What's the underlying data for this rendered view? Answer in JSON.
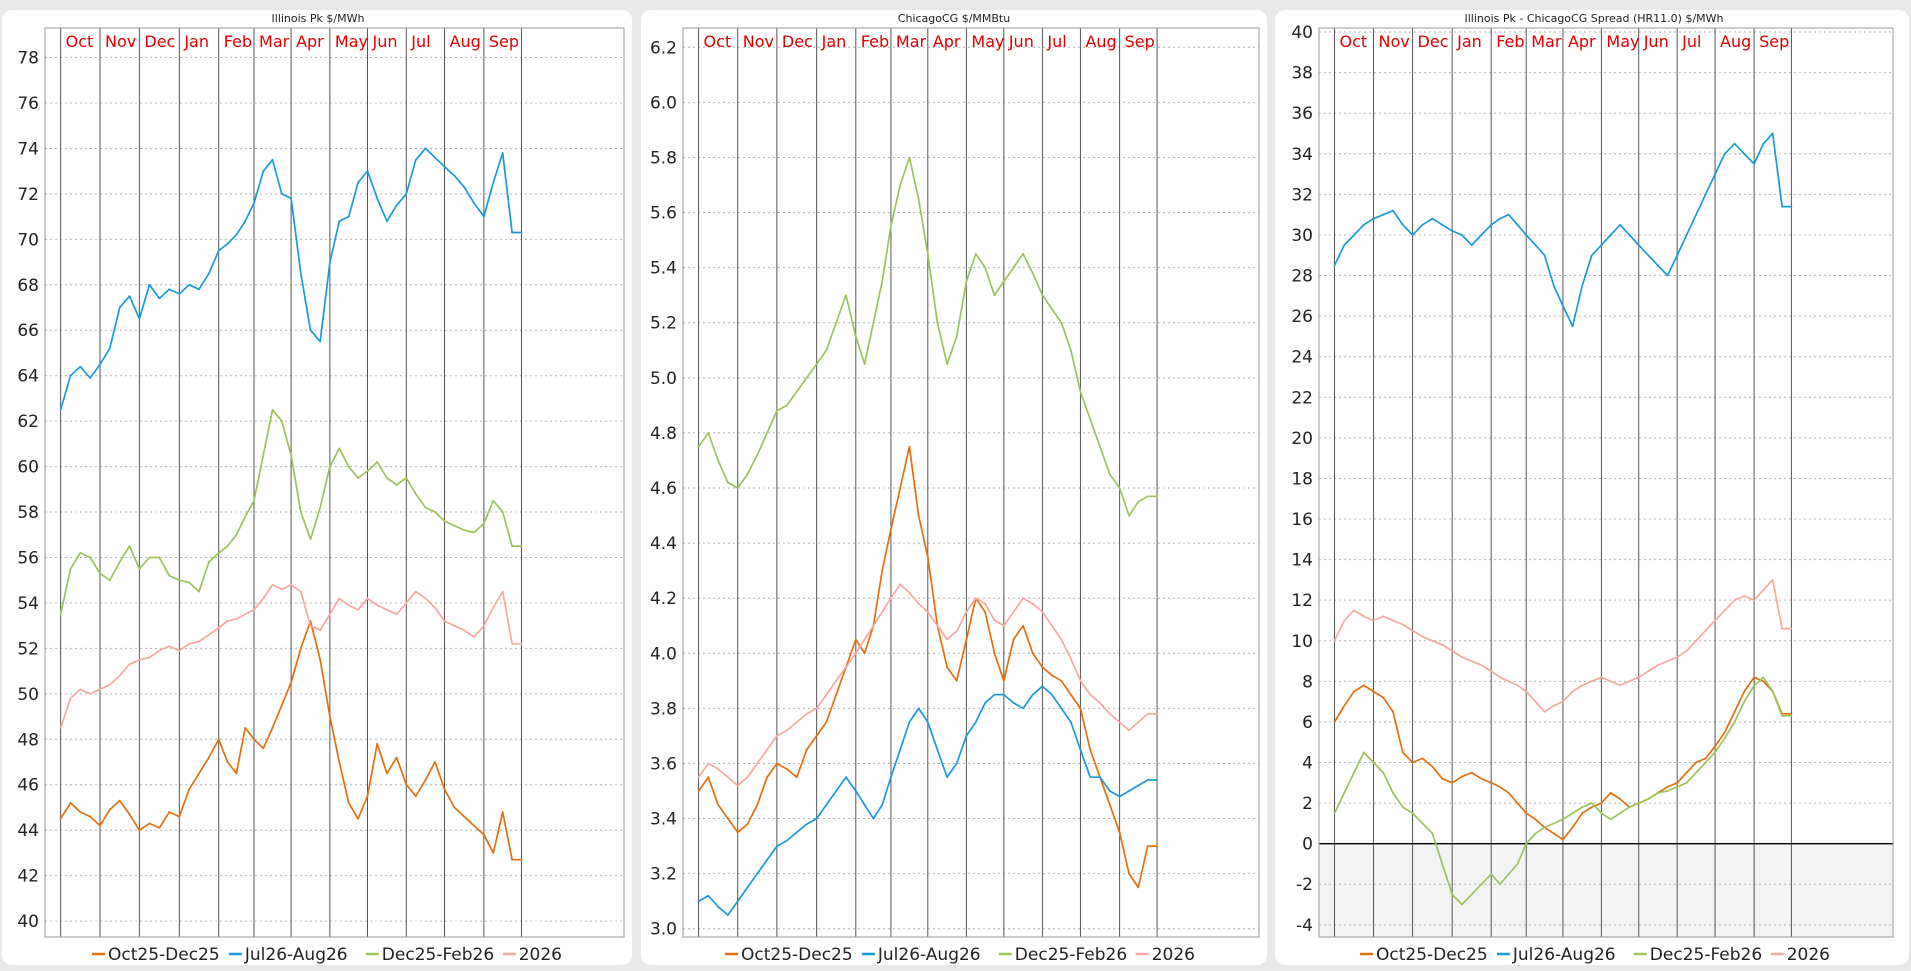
{
  "legend_series": [
    "Oct25-Dec25",
    "Jul26-Aug26",
    "Dec25-Feb26",
    "2026"
  ],
  "colors": {
    "Oct25-Dec25": "#e07010",
    "Jul26-Aug26": "#1a9ad6",
    "Dec25-Feb26": "#9cc25a",
    "2026": "#f4a8a0"
  },
  "chart_data": [
    {
      "type": "line",
      "title": "Illinois Pk $/MWh",
      "month_labels": [
        "Oct",
        "Nov",
        "Dec",
        "Jan",
        "Feb",
        "Mar",
        "Apr",
        "May",
        "Jun",
        "Jul",
        "Aug",
        "Sep"
      ],
      "yticks": [
        "40",
        "42",
        "44",
        "46",
        "48",
        "50",
        "52",
        "54",
        "56",
        "58",
        "60",
        "62",
        "64",
        "66",
        "68",
        "70",
        "72",
        "74",
        "76",
        "78"
      ],
      "ylim": [
        39.3,
        79.3
      ],
      "x": [
        0,
        0.25,
        0.5,
        0.75,
        1,
        1.25,
        1.5,
        1.75,
        2,
        2.25,
        2.5,
        2.75,
        3,
        3.25,
        3.5,
        3.75,
        4,
        4.25,
        4.5,
        4.75,
        5,
        5.25,
        5.5,
        5.75,
        6,
        6.25,
        6.5,
        6.75,
        7,
        7.25,
        7.5,
        7.75,
        8,
        8.25,
        8.5,
        8.75,
        9,
        9.25,
        9.5,
        9.75,
        10,
        10.25,
        10.5,
        10.75,
        11,
        11.25,
        11.5,
        11.75,
        12
      ],
      "series": [
        {
          "name": "Oct25-Dec25",
          "values": [
            44.5,
            45.2,
            44.8,
            44.6,
            44.2,
            44.9,
            45.3,
            44.7,
            44.0,
            44.3,
            44.1,
            44.8,
            44.6,
            45.8,
            46.5,
            47.2,
            48.0,
            47.0,
            46.5,
            48.5,
            48.0,
            47.6,
            48.5,
            49.5,
            50.5,
            52.0,
            53.2,
            51.5,
            49.0,
            47.0,
            45.2,
            44.5,
            45.5,
            47.8,
            46.5,
            47.2,
            46.0,
            45.5,
            46.2,
            47.0,
            45.8,
            45.0,
            44.6,
            44.2,
            43.8,
            43.0,
            44.8,
            42.7,
            42.7
          ]
        },
        {
          "name": "Jul26-Aug26",
          "values": [
            62.5,
            64.0,
            64.4,
            63.9,
            64.5,
            65.2,
            67.0,
            67.5,
            66.5,
            68.0,
            67.4,
            67.8,
            67.6,
            68.0,
            67.8,
            68.5,
            69.5,
            69.8,
            70.2,
            70.8,
            71.6,
            73.0,
            73.5,
            72.0,
            71.8,
            68.5,
            66.0,
            65.5,
            69.0,
            70.8,
            71.0,
            72.5,
            73.0,
            71.8,
            70.8,
            71.5,
            72.0,
            73.5,
            74.0,
            73.6,
            73.2,
            72.8,
            72.3,
            71.6,
            71.0,
            72.5,
            73.8,
            70.3,
            70.3
          ]
        },
        {
          "name": "Dec25-Feb26",
          "values": [
            53.5,
            55.5,
            56.2,
            56.0,
            55.3,
            55.0,
            55.8,
            56.5,
            55.5,
            56.0,
            56.0,
            55.2,
            55.0,
            54.9,
            54.5,
            55.8,
            56.2,
            56.5,
            57.0,
            57.8,
            58.5,
            60.5,
            62.5,
            62.0,
            60.5,
            58.0,
            56.8,
            58.2,
            60.0,
            60.8,
            60.0,
            59.5,
            59.8,
            60.2,
            59.5,
            59.2,
            59.5,
            58.8,
            58.2,
            58.0,
            57.6,
            57.4,
            57.2,
            57.1,
            57.5,
            58.5,
            58.0,
            56.5,
            56.5
          ]
        },
        {
          "name": "2026",
          "values": [
            48.5,
            49.8,
            50.2,
            50.0,
            50.2,
            50.4,
            50.8,
            51.3,
            51.5,
            51.6,
            51.9,
            52.1,
            51.9,
            52.2,
            52.3,
            52.6,
            52.9,
            53.2,
            53.3,
            53.5,
            53.7,
            54.2,
            54.8,
            54.6,
            54.8,
            54.5,
            53.0,
            52.8,
            53.5,
            54.2,
            53.9,
            53.7,
            54.2,
            53.9,
            53.7,
            53.5,
            54.0,
            54.5,
            54.2,
            53.8,
            53.2,
            53.0,
            52.8,
            52.5,
            53.0,
            53.8,
            54.5,
            52.2,
            52.2
          ]
        }
      ]
    },
    {
      "type": "line",
      "title": "ChicagoCG $/MMBtu",
      "month_labels": [
        "Oct",
        "Nov",
        "Dec",
        "Jan",
        "Feb",
        "Mar",
        "Apr",
        "May",
        "Jun",
        "Jul",
        "Aug",
        "Sep"
      ],
      "yticks": [
        "3.0",
        "3.2",
        "3.4",
        "3.6",
        "3.8",
        "4.0",
        "4.2",
        "4.4",
        "4.6",
        "4.8",
        "5.0",
        "5.2",
        "5.4",
        "5.6",
        "5.8",
        "6.0",
        "6.2"
      ],
      "ylim": [
        2.97,
        6.27
      ],
      "x": [
        0,
        0.25,
        0.5,
        0.75,
        1,
        1.25,
        1.5,
        1.75,
        2,
        2.25,
        2.5,
        2.75,
        3,
        3.25,
        3.5,
        3.75,
        4,
        4.25,
        4.5,
        4.75,
        5,
        5.25,
        5.5,
        5.75,
        6,
        6.25,
        6.5,
        6.75,
        7,
        7.25,
        7.5,
        7.75,
        8,
        8.25,
        8.5,
        8.75,
        9,
        9.25,
        9.5,
        9.75,
        10,
        10.25,
        10.5,
        10.75,
        11,
        11.25,
        11.5,
        11.75,
        12
      ],
      "series": [
        {
          "name": "Oct25-Dec25",
          "values": [
            3.5,
            3.55,
            3.45,
            3.4,
            3.35,
            3.38,
            3.45,
            3.55,
            3.6,
            3.58,
            3.55,
            3.65,
            3.7,
            3.75,
            3.85,
            3.95,
            4.05,
            4.0,
            4.1,
            4.3,
            4.45,
            4.6,
            4.75,
            4.5,
            4.35,
            4.1,
            3.95,
            3.9,
            4.05,
            4.2,
            4.15,
            4.0,
            3.9,
            4.05,
            4.1,
            4.0,
            3.95,
            3.92,
            3.9,
            3.85,
            3.8,
            3.65,
            3.55,
            3.45,
            3.35,
            3.2,
            3.15,
            3.3,
            3.3
          ]
        },
        {
          "name": "Jul26-Aug26",
          "values": [
            3.1,
            3.12,
            3.08,
            3.05,
            3.1,
            3.15,
            3.2,
            3.25,
            3.3,
            3.32,
            3.35,
            3.38,
            3.4,
            3.45,
            3.5,
            3.55,
            3.5,
            3.45,
            3.4,
            3.45,
            3.55,
            3.65,
            3.75,
            3.8,
            3.75,
            3.65,
            3.55,
            3.6,
            3.7,
            3.75,
            3.82,
            3.85,
            3.85,
            3.82,
            3.8,
            3.85,
            3.88,
            3.85,
            3.8,
            3.75,
            3.65,
            3.55,
            3.55,
            3.5,
            3.48,
            3.5,
            3.52,
            3.54,
            3.54
          ]
        },
        {
          "name": "Dec25-Feb26",
          "values": [
            4.75,
            4.8,
            4.7,
            4.62,
            4.6,
            4.65,
            4.72,
            4.8,
            4.88,
            4.9,
            4.95,
            5.0,
            5.05,
            5.1,
            5.2,
            5.3,
            5.15,
            5.05,
            5.2,
            5.35,
            5.55,
            5.7,
            5.8,
            5.65,
            5.45,
            5.2,
            5.05,
            5.15,
            5.35,
            5.45,
            5.4,
            5.3,
            5.35,
            5.4,
            5.45,
            5.38,
            5.3,
            5.25,
            5.2,
            5.1,
            4.95,
            4.85,
            4.75,
            4.65,
            4.6,
            4.5,
            4.55,
            4.57,
            4.57
          ]
        },
        {
          "name": "2026",
          "values": [
            3.55,
            3.6,
            3.58,
            3.55,
            3.52,
            3.55,
            3.6,
            3.65,
            3.7,
            3.72,
            3.75,
            3.78,
            3.8,
            3.85,
            3.9,
            3.95,
            4.0,
            4.05,
            4.1,
            4.15,
            4.2,
            4.25,
            4.22,
            4.18,
            4.15,
            4.1,
            4.05,
            4.08,
            4.15,
            4.2,
            4.18,
            4.12,
            4.1,
            4.15,
            4.2,
            4.18,
            4.15,
            4.1,
            4.05,
            3.98,
            3.9,
            3.85,
            3.82,
            3.78,
            3.75,
            3.72,
            3.75,
            3.78,
            3.78
          ]
        }
      ]
    },
    {
      "type": "line",
      "title": "Illinois Pk - ChicagoCG Spread (HR11.0) $/MWh",
      "month_labels": [
        "Oct",
        "Nov",
        "Dec",
        "Jan",
        "Feb",
        "Mar",
        "Apr",
        "May",
        "Jun",
        "Jul",
        "Aug",
        "Sep"
      ],
      "yticks": [
        "-4",
        "-2",
        "0",
        "2",
        "4",
        "6",
        "8",
        "10",
        "12",
        "14",
        "16",
        "18",
        "20",
        "22",
        "24",
        "26",
        "28",
        "30",
        "32",
        "34",
        "36",
        "38",
        "40"
      ],
      "ylim": [
        -4.6,
        40.2
      ],
      "x": [
        0,
        0.25,
        0.5,
        0.75,
        1,
        1.25,
        1.5,
        1.75,
        2,
        2.25,
        2.5,
        2.75,
        3,
        3.25,
        3.5,
        3.75,
        4,
        4.25,
        4.5,
        4.75,
        5,
        5.25,
        5.5,
        5.75,
        6,
        6.25,
        6.5,
        6.75,
        7,
        7.25,
        7.5,
        7.75,
        8,
        8.25,
        8.5,
        8.75,
        9,
        9.25,
        9.5,
        9.75,
        10,
        10.25,
        10.5,
        10.75,
        11,
        11.25,
        11.5,
        11.75,
        12
      ],
      "series": [
        {
          "name": "Oct25-Dec25",
          "values": [
            6.0,
            6.8,
            7.5,
            7.8,
            7.5,
            7.2,
            6.5,
            4.5,
            4.0,
            4.2,
            3.8,
            3.2,
            3.0,
            3.3,
            3.5,
            3.2,
            3.0,
            2.8,
            2.5,
            2.0,
            1.5,
            1.2,
            0.8,
            0.5,
            0.2,
            0.8,
            1.5,
            1.8,
            2.0,
            2.5,
            2.2,
            1.8,
            2.0,
            2.2,
            2.5,
            2.8,
            3.0,
            3.5,
            4.0,
            4.2,
            4.8,
            5.5,
            6.5,
            7.5,
            8.2,
            8.0,
            7.5,
            6.4,
            6.4
          ]
        },
        {
          "name": "Jul26-Aug26",
          "values": [
            28.5,
            29.5,
            30.0,
            30.5,
            30.8,
            31.0,
            31.2,
            30.5,
            30.0,
            30.5,
            30.8,
            30.5,
            30.2,
            30.0,
            29.5,
            30.0,
            30.5,
            30.8,
            31.0,
            30.5,
            30.0,
            29.5,
            29.0,
            27.5,
            26.5,
            25.5,
            27.5,
            29.0,
            29.5,
            30.0,
            30.5,
            30.0,
            29.5,
            29.0,
            28.5,
            28.0,
            29.0,
            30.0,
            31.0,
            32.0,
            33.0,
            34.0,
            34.5,
            34.0,
            33.5,
            34.5,
            35.0,
            31.4,
            31.4
          ]
        },
        {
          "name": "Dec25-Feb26",
          "values": [
            1.5,
            2.5,
            3.5,
            4.5,
            4.0,
            3.5,
            2.5,
            1.8,
            1.5,
            1.0,
            0.5,
            -1.0,
            -2.5,
            -3.0,
            -2.5,
            -2.0,
            -1.5,
            -2.0,
            -1.5,
            -1.0,
            0.0,
            0.5,
            0.8,
            1.0,
            1.2,
            1.5,
            1.8,
            2.0,
            1.5,
            1.2,
            1.5,
            1.8,
            2.0,
            2.2,
            2.5,
            2.6,
            2.8,
            3.0,
            3.5,
            4.0,
            4.5,
            5.2,
            6.0,
            7.0,
            7.8,
            8.2,
            7.5,
            6.3,
            6.3
          ]
        },
        {
          "name": "2026",
          "values": [
            10.0,
            11.0,
            11.5,
            11.2,
            11.0,
            11.2,
            11.0,
            10.8,
            10.5,
            10.2,
            10.0,
            9.8,
            9.5,
            9.2,
            9.0,
            8.8,
            8.5,
            8.2,
            8.0,
            7.8,
            7.5,
            7.0,
            6.5,
            6.8,
            7.0,
            7.5,
            7.8,
            8.0,
            8.2,
            8.0,
            7.8,
            8.0,
            8.2,
            8.5,
            8.8,
            9.0,
            9.2,
            9.5,
            10.0,
            10.5,
            11.0,
            11.5,
            12.0,
            12.2,
            12.0,
            12.5,
            13.0,
            10.6,
            10.6
          ]
        }
      ]
    }
  ]
}
